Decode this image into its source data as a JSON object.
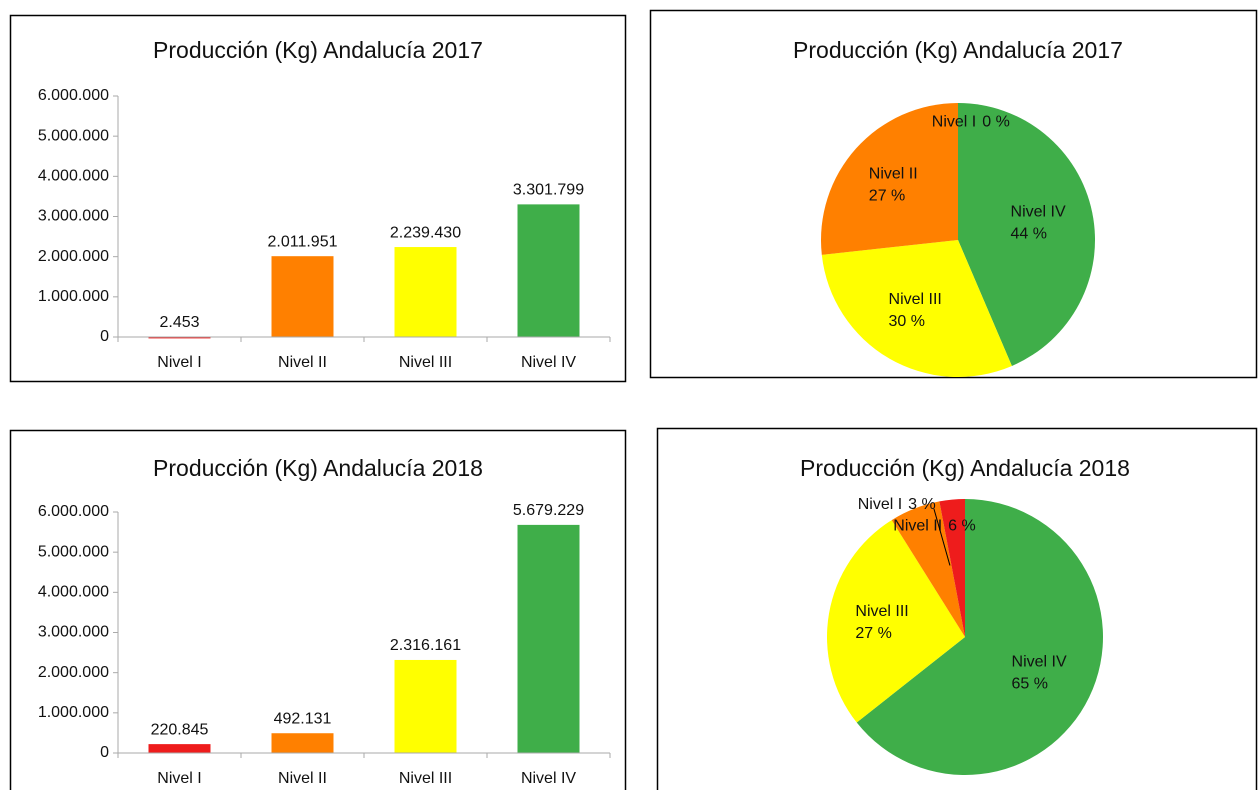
{
  "chart_data": [
    {
      "type": "bar",
      "title": "Producción (Kg) Andalucía 2017",
      "categories": [
        "Nivel I",
        "Nivel II",
        "Nivel III",
        "Nivel IV"
      ],
      "values": [
        2453,
        2011951,
        2239430,
        3301799
      ],
      "value_labels": [
        "2.453",
        "2.011.951",
        "2.239.430",
        "3.301.799"
      ],
      "colors": [
        "#ee1c1c",
        "#ff8000",
        "#ffff00",
        "#3fae49"
      ],
      "ylim": [
        0,
        6000000
      ],
      "yticks": [
        0,
        {
          "value": 1000000,
          "label": "1.000.000"
        },
        {
          "value": 2000000,
          "label": "2.000.000"
        },
        {
          "value": 3000000,
          "label": "3.000.000"
        },
        {
          "value": 4000000,
          "label": "4.000.000"
        },
        {
          "value": 5000000,
          "label": "5.000.000"
        },
        {
          "value": 6000000,
          "label": "6.000.000"
        }
      ]
    },
    {
      "type": "pie",
      "title": "Producción (Kg) Andalucía 2017",
      "categories": [
        "Nivel I",
        "Nivel II",
        "Nivel III",
        "Nivel IV"
      ],
      "values": [
        0,
        27,
        30,
        44
      ],
      "value_labels": [
        "0 %",
        "27 %",
        "30 %",
        "44 %"
      ],
      "colors": [
        "#ee1c1c",
        "#ff8000",
        "#ffff00",
        "#3fae49"
      ]
    },
    {
      "type": "bar",
      "title": "Producción (Kg) Andalucía 2018",
      "categories": [
        "Nivel I",
        "Nivel II",
        "Nivel III",
        "Nivel IV"
      ],
      "values": [
        220845,
        492131,
        2316161,
        5679229
      ],
      "value_labels": [
        "220.845",
        "492.131",
        "2.316.161",
        "5.679.229"
      ],
      "colors": [
        "#ee1c1c",
        "#ff8000",
        "#ffff00",
        "#3fae49"
      ],
      "ylim": [
        0,
        6000000
      ],
      "yticks": [
        0,
        {
          "value": 1000000,
          "label": "1.000.000"
        },
        {
          "value": 2000000,
          "label": "2.000.000"
        },
        {
          "value": 3000000,
          "label": "3.000.000"
        },
        {
          "value": 4000000,
          "label": "4.000.000"
        },
        {
          "value": 5000000,
          "label": "5.000.000"
        },
        {
          "value": 6000000,
          "label": "6.000.000"
        }
      ]
    },
    {
      "type": "pie",
      "title": "Producción (Kg) Andalucía 2018",
      "categories": [
        "Nivel I",
        "Nivel II",
        "Nivel III",
        "Nivel IV"
      ],
      "values": [
        3,
        6,
        27,
        65
      ],
      "value_labels": [
        "3 %",
        "6 %",
        "27 %",
        "65 %"
      ],
      "colors": [
        "#ee1c1c",
        "#ff8000",
        "#ffff00",
        "#3fae49"
      ]
    }
  ]
}
